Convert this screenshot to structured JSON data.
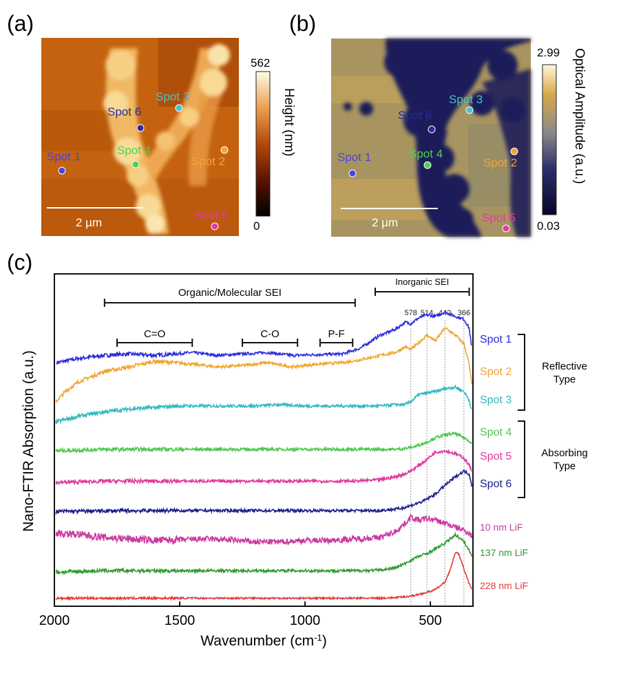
{
  "panels": {
    "a": {
      "label": "(a)",
      "scale_bar": "2 µm",
      "colorbar": {
        "max": "562",
        "min": "0",
        "title": "Height (nm)"
      },
      "spots": [
        {
          "label": "Spot 1",
          "color": "#4a46d6"
        },
        {
          "label": "Spot 2",
          "color": "#f2a33a"
        },
        {
          "label": "Spot 3",
          "color": "#4bc3c8"
        },
        {
          "label": "Spot 4",
          "color": "#4fd24f"
        },
        {
          "label": "Spot 5",
          "color": "#e03aa8"
        },
        {
          "label": "Spot 6",
          "color": "#2a2a9a"
        }
      ]
    },
    "b": {
      "label": "(b)",
      "scale_bar": "2 µm",
      "colorbar": {
        "max": "2.99",
        "min": "0.03",
        "title": "Optical Amplitude (a.u.)"
      },
      "spots": [
        {
          "label": "Spot 1",
          "color": "#4a46d6"
        },
        {
          "label": "Spot 2",
          "color": "#f2a33a"
        },
        {
          "label": "Spot 3",
          "color": "#4bc3c8"
        },
        {
          "label": "Spot 4",
          "color": "#4fd24f"
        },
        {
          "label": "Spot 5",
          "color": "#e03aa8"
        },
        {
          "label": "Spot 6",
          "color": "#2a2a9a"
        }
      ]
    },
    "c": {
      "label": "(c)"
    }
  },
  "chart_data": {
    "type": "line",
    "xlabel": "Wavenumber (cm",
    "xlabel_sup": "-1",
    "xlabel_tail": ")",
    "ylabel": "Nano-FTIR Absorption (a.u.)",
    "xlim": [
      2000,
      330
    ],
    "xticks": [
      2000,
      1500,
      1000,
      500
    ],
    "vlines": [
      {
        "x": 578,
        "label": "578"
      },
      {
        "x": 514,
        "label": "514"
      },
      {
        "x": 442,
        "label": "442"
      },
      {
        "x": 366,
        "label": "366"
      }
    ],
    "brackets": [
      {
        "label": "Organic/Molecular SEI",
        "x0": 1800,
        "x1": 800
      },
      {
        "label": "Inorganic SEI",
        "x0": 720,
        "x1": 345
      },
      {
        "label": "C=O",
        "x0": 1750,
        "x1": 1450
      },
      {
        "label": "C-O",
        "x0": 1250,
        "x1": 1030
      },
      {
        "label": "P-F",
        "x0": 940,
        "x1": 810
      }
    ],
    "groups": [
      {
        "label": "Reflective Type",
        "members": [
          "Spot 1",
          "Spot 2",
          "Spot 3"
        ]
      },
      {
        "label": "Absorbing Type",
        "members": [
          "Spot 4",
          "Spot 5",
          "Spot 6"
        ]
      }
    ],
    "series": [
      {
        "name": "Spot 1",
        "color": "#2b2bdc",
        "offset": 9.0,
        "x": [
          1990,
          1900,
          1800,
          1700,
          1600,
          1450,
          1350,
          1250,
          1150,
          1050,
          950,
          850,
          780,
          700,
          640,
          600,
          578,
          545,
          514,
          480,
          442,
          400,
          366,
          345,
          335
        ],
        "y": [
          0.0,
          0.15,
          0.25,
          0.3,
          0.25,
          0.35,
          0.25,
          0.3,
          0.35,
          0.25,
          0.28,
          0.3,
          0.5,
          0.95,
          1.15,
          1.4,
          1.35,
          1.55,
          1.65,
          1.6,
          1.75,
          1.6,
          1.5,
          1.2,
          0.5
        ]
      },
      {
        "name": "Spot 2",
        "color": "#f0a530",
        "offset": 7.85,
        "x": [
          1995,
          1950,
          1900,
          1800,
          1700,
          1600,
          1450,
          1350,
          1250,
          1150,
          1050,
          950,
          850,
          780,
          700,
          640,
          600,
          578,
          545,
          514,
          480,
          442,
          400,
          366,
          345,
          335
        ],
        "y": [
          -0.2,
          0.2,
          0.5,
          0.85,
          1.0,
          1.2,
          1.1,
          1.0,
          1.05,
          1.15,
          1.0,
          1.1,
          1.15,
          1.25,
          1.4,
          1.5,
          1.7,
          1.6,
          1.85,
          2.1,
          1.9,
          2.35,
          2.1,
          1.8,
          1.1,
          0.4
        ]
      },
      {
        "name": "Spot 3",
        "color": "#33b8c0",
        "offset": 6.95,
        "x": [
          1995,
          1900,
          1800,
          1700,
          1600,
          1500,
          1400,
          1300,
          1200,
          1100,
          1000,
          900,
          800,
          700,
          640,
          600,
          578,
          545,
          514,
          480,
          442,
          400,
          366,
          345,
          335
        ],
        "y": [
          0.0,
          0.2,
          0.35,
          0.45,
          0.5,
          0.55,
          0.55,
          0.55,
          0.55,
          0.6,
          0.55,
          0.55,
          0.55,
          0.55,
          0.6,
          0.6,
          0.7,
          0.95,
          1.0,
          1.05,
          1.15,
          1.2,
          1.05,
          0.75,
          0.4
        ]
      },
      {
        "name": "Spot 4",
        "color": "#4cc84c",
        "offset": 5.95,
        "x": [
          1995,
          1800,
          1600,
          1400,
          1200,
          1000,
          800,
          700,
          640,
          600,
          560,
          514,
          480,
          442,
          400,
          366,
          345,
          335
        ],
        "y": [
          0.0,
          0.05,
          0.05,
          0.05,
          0.05,
          0.05,
          0.05,
          0.05,
          0.05,
          0.08,
          0.15,
          0.3,
          0.45,
          0.55,
          0.6,
          0.45,
          0.35,
          0.25
        ]
      },
      {
        "name": "Spot 5",
        "color": "#e0389c",
        "offset": 4.85,
        "x": [
          1995,
          1800,
          1600,
          1400,
          1200,
          1000,
          800,
          700,
          640,
          600,
          560,
          514,
          480,
          442,
          400,
          366,
          345,
          335
        ],
        "y": [
          0.0,
          0.05,
          0.05,
          0.05,
          0.05,
          0.05,
          0.05,
          0.1,
          0.2,
          0.3,
          0.5,
          0.8,
          1.05,
          1.1,
          1.0,
          0.85,
          0.6,
          0.4
        ]
      },
      {
        "name": "Spot 6",
        "color": "#1c1c8a",
        "offset": 3.85,
        "x": [
          1995,
          1800,
          1600,
          1400,
          1200,
          1000,
          800,
          700,
          620,
          580,
          530,
          480,
          442,
          400,
          366,
          345,
          335
        ],
        "y": [
          0.0,
          0.02,
          0.03,
          0.03,
          0.03,
          0.03,
          0.03,
          0.03,
          0.1,
          0.2,
          0.35,
          0.6,
          0.9,
          1.2,
          1.4,
          1.3,
          0.9
        ]
      },
      {
        "name": "10 nm LiF",
        "color": "#c83a9e",
        "offset": 2.85,
        "x": [
          1995,
          1900,
          1800,
          1700,
          1600,
          1500,
          1400,
          1300,
          1200,
          1100,
          1000,
          900,
          800,
          700,
          640,
          600,
          578,
          545,
          514,
          480,
          442,
          400,
          366,
          345,
          335
        ],
        "y": [
          0.25,
          0.2,
          0.1,
          0.05,
          0.0,
          0.02,
          0.05,
          0.02,
          -0.05,
          -0.05,
          0.0,
          0.0,
          0.05,
          0.1,
          0.3,
          0.6,
          0.8,
          0.7,
          0.75,
          0.7,
          0.6,
          0.45,
          0.35,
          0.25,
          0.15
        ]
      },
      {
        "name": "137 nm LiF",
        "color": "#2e9a2e",
        "offset": 1.75,
        "x": [
          1995,
          1800,
          1600,
          1400,
          1200,
          1000,
          800,
          700,
          640,
          600,
          560,
          514,
          480,
          442,
          400,
          366,
          345,
          335
        ],
        "y": [
          0.0,
          0.05,
          0.05,
          0.05,
          0.05,
          0.05,
          0.05,
          0.07,
          0.15,
          0.3,
          0.5,
          0.65,
          0.8,
          1.0,
          1.3,
          1.05,
          0.75,
          0.55
        ]
      },
      {
        "name": "228 nm LiF",
        "color": "#e03a3a",
        "offset": 0.85,
        "x": [
          1995,
          1800,
          1600,
          1400,
          1200,
          1000,
          800,
          700,
          640,
          600,
          560,
          514,
          480,
          442,
          420,
          400,
          385,
          366,
          345,
          335
        ],
        "y": [
          0.0,
          0.0,
          0.0,
          0.0,
          0.0,
          0.0,
          0.0,
          0.0,
          0.02,
          0.05,
          0.1,
          0.2,
          0.3,
          0.55,
          1.0,
          1.6,
          1.5,
          1.0,
          0.5,
          0.3
        ]
      }
    ]
  }
}
